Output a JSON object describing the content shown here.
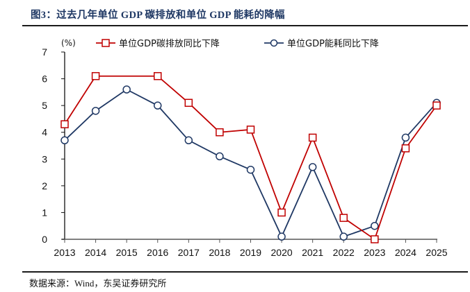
{
  "figure": {
    "title": "图3：过去几年单位 GDP 碳排放和单位 GDP 能耗的降幅",
    "source": "数据来源：Wind，东吴证券研究所"
  },
  "chart_data": {
    "type": "line",
    "title": "图3：过去几年单位 GDP 碳排放和单位 GDP 能耗的降幅",
    "ylabel": "(%)",
    "xlabel": "",
    "x": [
      "2013",
      "2014",
      "2015",
      "2016",
      "2017",
      "2018",
      "2019",
      "2020",
      "2021",
      "2022",
      "2023",
      "2024",
      "2025"
    ],
    "ylim": [
      0,
      7
    ],
    "yticks": [
      0,
      1,
      2,
      3,
      4,
      5,
      6,
      7
    ],
    "grid": false,
    "legend_position": "top",
    "series": [
      {
        "name": "单位GDP碳排放同比下降",
        "color": "#c00000",
        "marker": "square",
        "values": [
          4.3,
          6.1,
          null,
          6.1,
          5.1,
          4.0,
          4.1,
          1.0,
          3.8,
          0.8,
          0.0,
          3.4,
          5.0
        ]
      },
      {
        "name": "单位GDP能耗同比下降",
        "color": "#1f3864",
        "marker": "circle",
        "values": [
          3.7,
          4.8,
          5.6,
          5.0,
          3.7,
          3.1,
          2.6,
          0.1,
          2.7,
          0.1,
          0.5,
          3.8,
          5.1
        ]
      }
    ]
  }
}
